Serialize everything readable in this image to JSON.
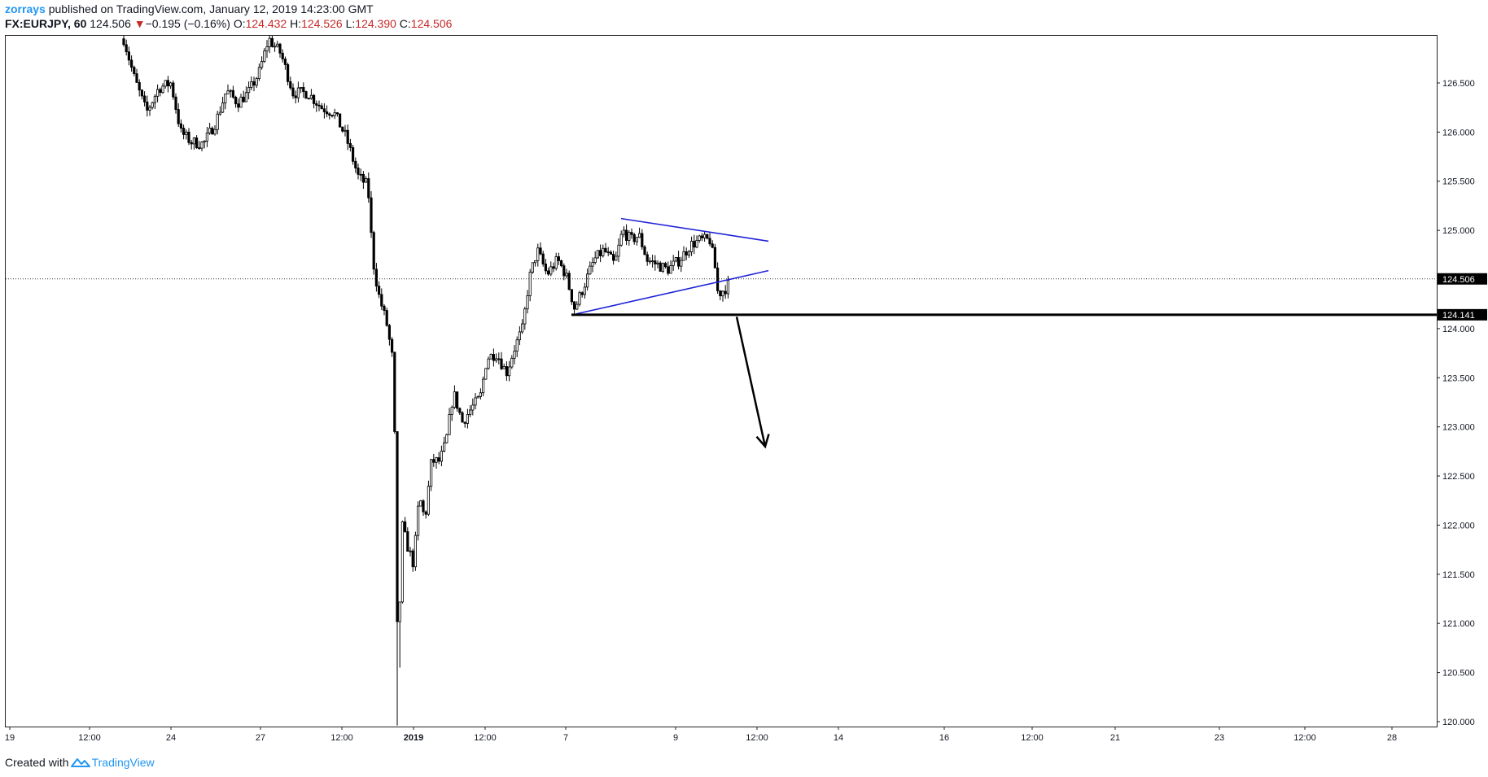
{
  "header": {
    "author": "zorrays",
    "published_text": "published on TradingView.com, January 12, 2019 14:23:00 GMT",
    "symbol": "FX:EURJPY, 60",
    "last": "124.506",
    "change_arrow": "▼",
    "change": "−0.195 (−0.16%)",
    "o_label": "O:",
    "o_value": "124.432",
    "h_label": "H:",
    "h_value": "124.526",
    "l_label": "L:",
    "l_value": "124.390",
    "c_label": "C:",
    "c_value": "124.506"
  },
  "footer": {
    "created_with": "Created with",
    "brand": "TradingView",
    "brand_icon": "tradingview-logo-icon"
  },
  "colors": {
    "candle": "#000000",
    "trendline": "#1e22d6",
    "support": "#000000",
    "badge_bg": "#000000",
    "badge_text": "#ffffff",
    "change_red": "#c62828",
    "author_blue": "#2196f3"
  },
  "chart_data": {
    "type": "candlestick",
    "symbol": "FX:EURJPY",
    "interval": "60",
    "y_axis": {
      "ticks": [
        "126.500",
        "126.000",
        "125.500",
        "125.000",
        "124.500",
        "124.000",
        "123.500",
        "123.000",
        "122.500",
        "122.000",
        "121.500",
        "121.000",
        "120.500",
        "120.000"
      ],
      "range": [
        119.95,
        126.98
      ]
    },
    "x_axis": {
      "labels": [
        "19",
        "12:00",
        "24",
        "27",
        "12:00",
        "2019",
        "12:00",
        "7",
        "9",
        "12:00",
        "14",
        "16",
        "12:00",
        "21",
        "23",
        "12:00",
        "28"
      ]
    },
    "price_path": [
      {
        "x": 152,
        "y": 126.95
      },
      {
        "x": 165,
        "y": 126.55
      },
      {
        "x": 180,
        "y": 126.2
      },
      {
        "x": 195,
        "y": 126.45
      },
      {
        "x": 210,
        "y": 126.5
      },
      {
        "x": 222,
        "y": 126.0
      },
      {
        "x": 235,
        "y": 125.9
      },
      {
        "x": 250,
        "y": 125.88
      },
      {
        "x": 265,
        "y": 126.1
      },
      {
        "x": 278,
        "y": 126.42
      },
      {
        "x": 292,
        "y": 126.3
      },
      {
        "x": 305,
        "y": 126.4
      },
      {
        "x": 318,
        "y": 126.6
      },
      {
        "x": 330,
        "y": 126.95
      },
      {
        "x": 345,
        "y": 126.8
      },
      {
        "x": 360,
        "y": 126.4
      },
      {
        "x": 378,
        "y": 126.4
      },
      {
        "x": 395,
        "y": 126.25
      },
      {
        "x": 410,
        "y": 126.2
      },
      {
        "x": 425,
        "y": 125.95
      },
      {
        "x": 440,
        "y": 125.55
      },
      {
        "x": 452,
        "y": 125.45
      },
      {
        "x": 458,
        "y": 124.7
      },
      {
        "x": 465,
        "y": 124.35
      },
      {
        "x": 475,
        "y": 124.05
      },
      {
        "x": 484,
        "y": 123.6
      },
      {
        "x": 487,
        "y": 121.0
      },
      {
        "x": 490,
        "y": 120.9
      },
      {
        "x": 494,
        "y": 122.0
      },
      {
        "x": 500,
        "y": 121.8
      },
      {
        "x": 508,
        "y": 121.6
      },
      {
        "x": 515,
        "y": 122.3
      },
      {
        "x": 522,
        "y": 122.05
      },
      {
        "x": 530,
        "y": 122.65
      },
      {
        "x": 540,
        "y": 122.65
      },
      {
        "x": 548,
        "y": 122.85
      },
      {
        "x": 557,
        "y": 123.35
      },
      {
        "x": 568,
        "y": 123.05
      },
      {
        "x": 580,
        "y": 123.2
      },
      {
        "x": 590,
        "y": 123.3
      },
      {
        "x": 598,
        "y": 123.7
      },
      {
        "x": 610,
        "y": 123.75
      },
      {
        "x": 622,
        "y": 123.55
      },
      {
        "x": 632,
        "y": 123.8
      },
      {
        "x": 642,
        "y": 124.0
      },
      {
        "x": 650,
        "y": 124.5
      },
      {
        "x": 660,
        "y": 124.8
      },
      {
        "x": 672,
        "y": 124.55
      },
      {
        "x": 685,
        "y": 124.7
      },
      {
        "x": 695,
        "y": 124.55
      },
      {
        "x": 706,
        "y": 124.2
      },
      {
        "x": 718,
        "y": 124.45
      },
      {
        "x": 730,
        "y": 124.7
      },
      {
        "x": 742,
        "y": 124.8
      },
      {
        "x": 755,
        "y": 124.65
      },
      {
        "x": 765,
        "y": 125.0
      },
      {
        "x": 775,
        "y": 124.9
      },
      {
        "x": 785,
        "y": 124.95
      },
      {
        "x": 795,
        "y": 124.7
      },
      {
        "x": 808,
        "y": 124.65
      },
      {
        "x": 820,
        "y": 124.6
      },
      {
        "x": 835,
        "y": 124.7
      },
      {
        "x": 848,
        "y": 124.85
      },
      {
        "x": 860,
        "y": 124.9
      },
      {
        "x": 872,
        "y": 124.9
      },
      {
        "x": 878,
        "y": 124.65
      },
      {
        "x": 882,
        "y": 124.35
      },
      {
        "x": 890,
        "y": 124.4
      },
      {
        "x": 897,
        "y": 124.47
      }
    ],
    "drawings": {
      "upper_trendline": [
        {
          "x": 763,
          "y": 125.12
        },
        {
          "x": 944,
          "y": 124.89
        }
      ],
      "lower_trendline": [
        {
          "x": 708,
          "y": 124.15
        },
        {
          "x": 944,
          "y": 124.59
        }
      ],
      "support_line": {
        "x_start": 702,
        "price": 124.141
      },
      "arrow": {
        "from": {
          "x": 905,
          "y": 124.12
        },
        "to": {
          "x": 940,
          "y": 122.8
        }
      }
    },
    "price_labels": {
      "last": {
        "value": "124.506",
        "price": 124.506
      },
      "support": {
        "value": "124.141",
        "price": 124.141
      }
    }
  }
}
